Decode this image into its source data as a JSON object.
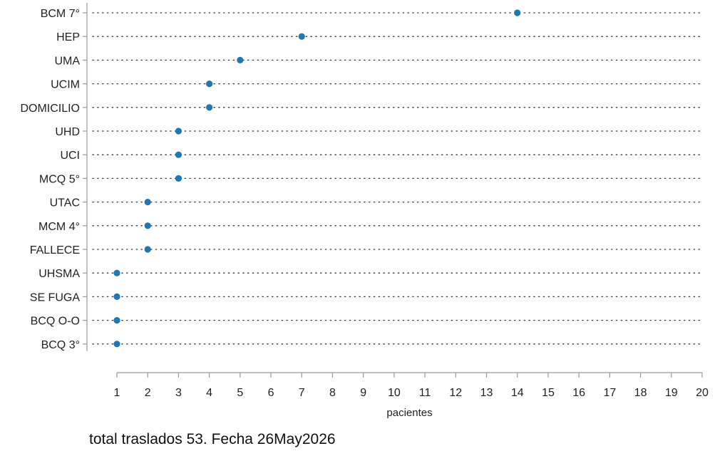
{
  "chart_data": {
    "type": "scatter",
    "subtype": "dot-plot",
    "categories": [
      "BCM 7°",
      "HEP",
      "UMA",
      "UCIM",
      "DOMICILIO",
      "UHD",
      "UCI",
      "MCQ 5°",
      "UTAC",
      "MCM 4°",
      "FALLECE",
      "UHSMA",
      "SE FUGA",
      "BCQ O-O",
      "BCQ 3°"
    ],
    "values": [
      14,
      7,
      5,
      4,
      4,
      3,
      3,
      3,
      2,
      2,
      2,
      1,
      1,
      1,
      1
    ],
    "xlabel": "pacientes",
    "ylabel": "",
    "xlim": [
      1,
      20
    ],
    "xticks": [
      1,
      2,
      3,
      4,
      5,
      6,
      7,
      8,
      9,
      10,
      11,
      12,
      13,
      14,
      15,
      16,
      17,
      18,
      19,
      20
    ],
    "grid": "dotted-horizontal",
    "point_color": "#1f77b4"
  },
  "footer": {
    "caption": "total traslados 53. Fecha 26May2026"
  }
}
